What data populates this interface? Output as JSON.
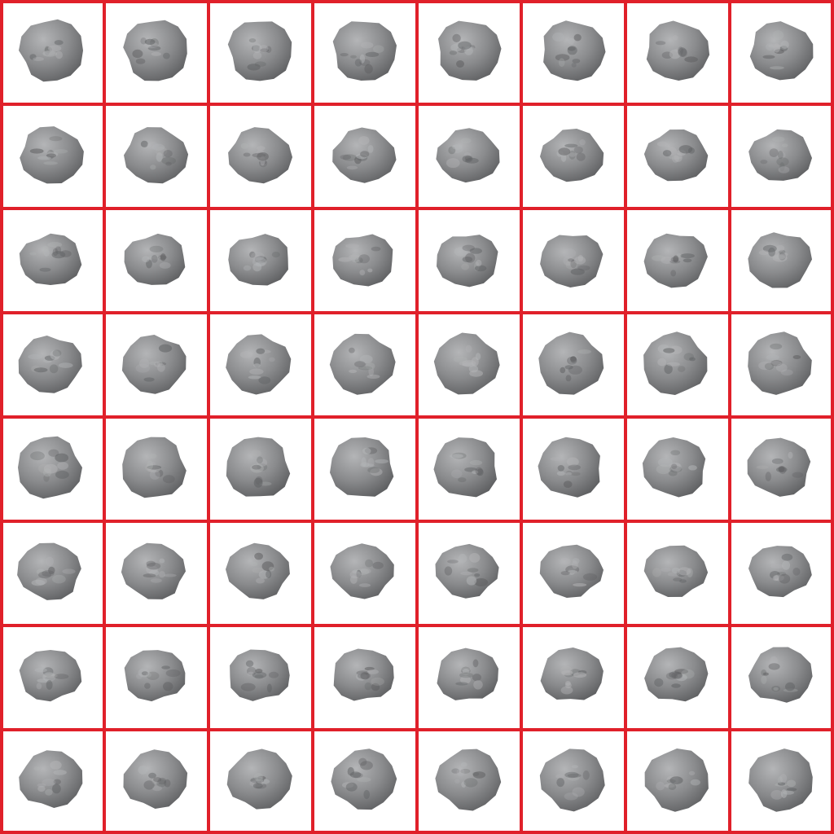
{
  "sprite_sheet": {
    "columns": 8,
    "rows": 8,
    "frame_count": 64,
    "sprite_icon": "asteroid-rock-icon",
    "grid_color": "#e0202a",
    "background_color": "#ffffff",
    "rock_base_color": "#8a8b8d",
    "rock_light_color": "#b4b5b7",
    "rock_dark_color": "#5e5f61",
    "rotation_degrees_per_frame": 5.625
  }
}
